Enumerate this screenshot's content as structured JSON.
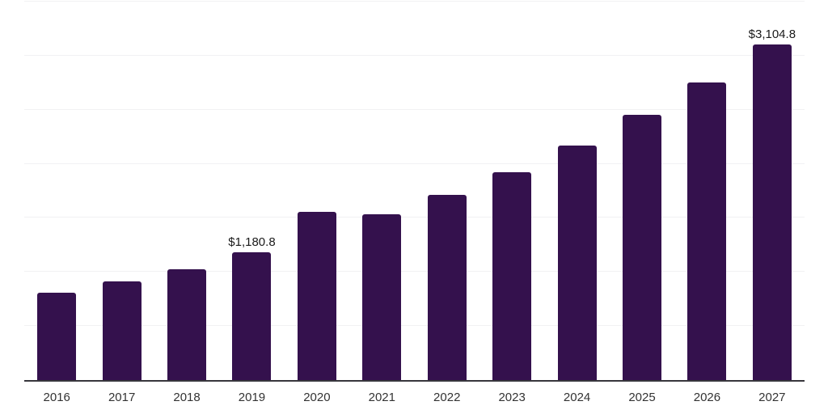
{
  "colors": {
    "background": "#ffffff",
    "bar": "#34114d",
    "axis_line": "#37363c",
    "gridline": "#f1f1f3",
    "tick_label": "#333333",
    "data_label": "#1a1a1a"
  },
  "chart_data": {
    "type": "bar",
    "title": "",
    "xlabel": "",
    "ylabel": "",
    "categories": [
      "2016",
      "2017",
      "2018",
      "2019",
      "2020",
      "2021",
      "2022",
      "2023",
      "2024",
      "2025",
      "2026",
      "2027"
    ],
    "values": [
      810,
      910,
      1025,
      1180.8,
      1555,
      1530,
      1710,
      1925,
      2170,
      2450,
      2755,
      3104.8
    ],
    "data_labels": {
      "2019": "$1,180.8",
      "2027": "$3,104.8"
    },
    "ylim": [
      0,
      3500
    ],
    "grid_interval": 500,
    "grid": "horizontal",
    "legend": "none",
    "y_axis_labels_visible": false,
    "value_format": "USD, comma-separated, one decimal"
  }
}
